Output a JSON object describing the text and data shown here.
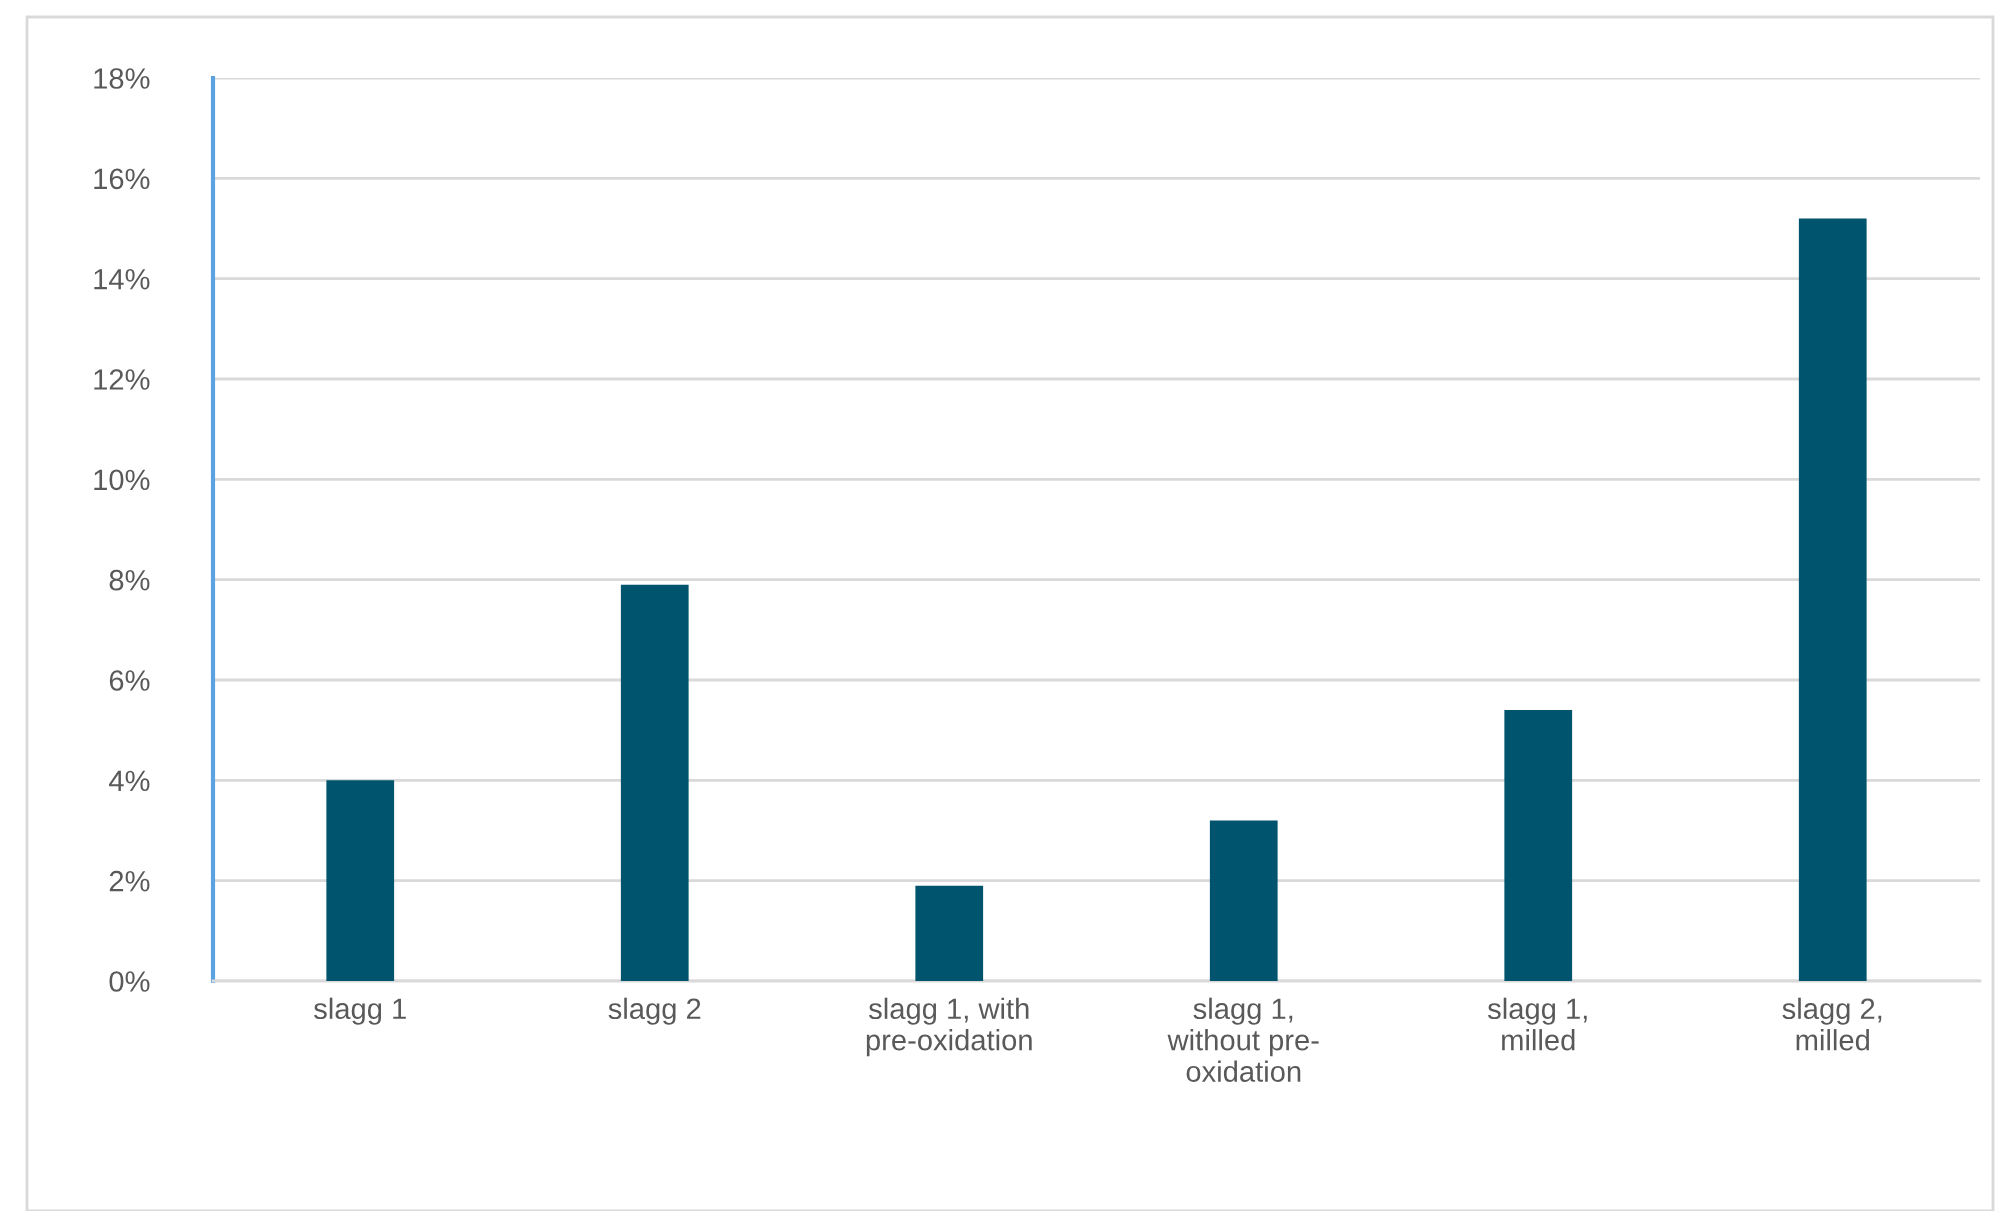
{
  "chart_data": {
    "type": "bar",
    "categories": [
      "slagg 1",
      "slagg 2",
      "slagg 1, with\npre-oxidation",
      "slagg 1,\nwithout pre-\noxidation",
      "slagg 1,\nmilled",
      "slagg 2,\nmilled"
    ],
    "values": [
      4.0,
      7.9,
      1.9,
      3.2,
      5.4,
      15.2
    ],
    "color": "#00546e",
    "ylim": [
      0,
      18
    ],
    "yticks": [
      {
        "value": 0,
        "label": "0%"
      },
      {
        "value": 2,
        "label": "2%"
      },
      {
        "value": 4,
        "label": "4%"
      },
      {
        "value": 6,
        "label": "6%"
      },
      {
        "value": 8,
        "label": "8%"
      },
      {
        "value": 10,
        "label": "10%"
      },
      {
        "value": 12,
        "label": "12%"
      },
      {
        "value": 14,
        "label": "14%"
      },
      {
        "value": 16,
        "label": "16%"
      },
      {
        "value": 18,
        "label": "18%"
      }
    ],
    "grid": "y"
  }
}
